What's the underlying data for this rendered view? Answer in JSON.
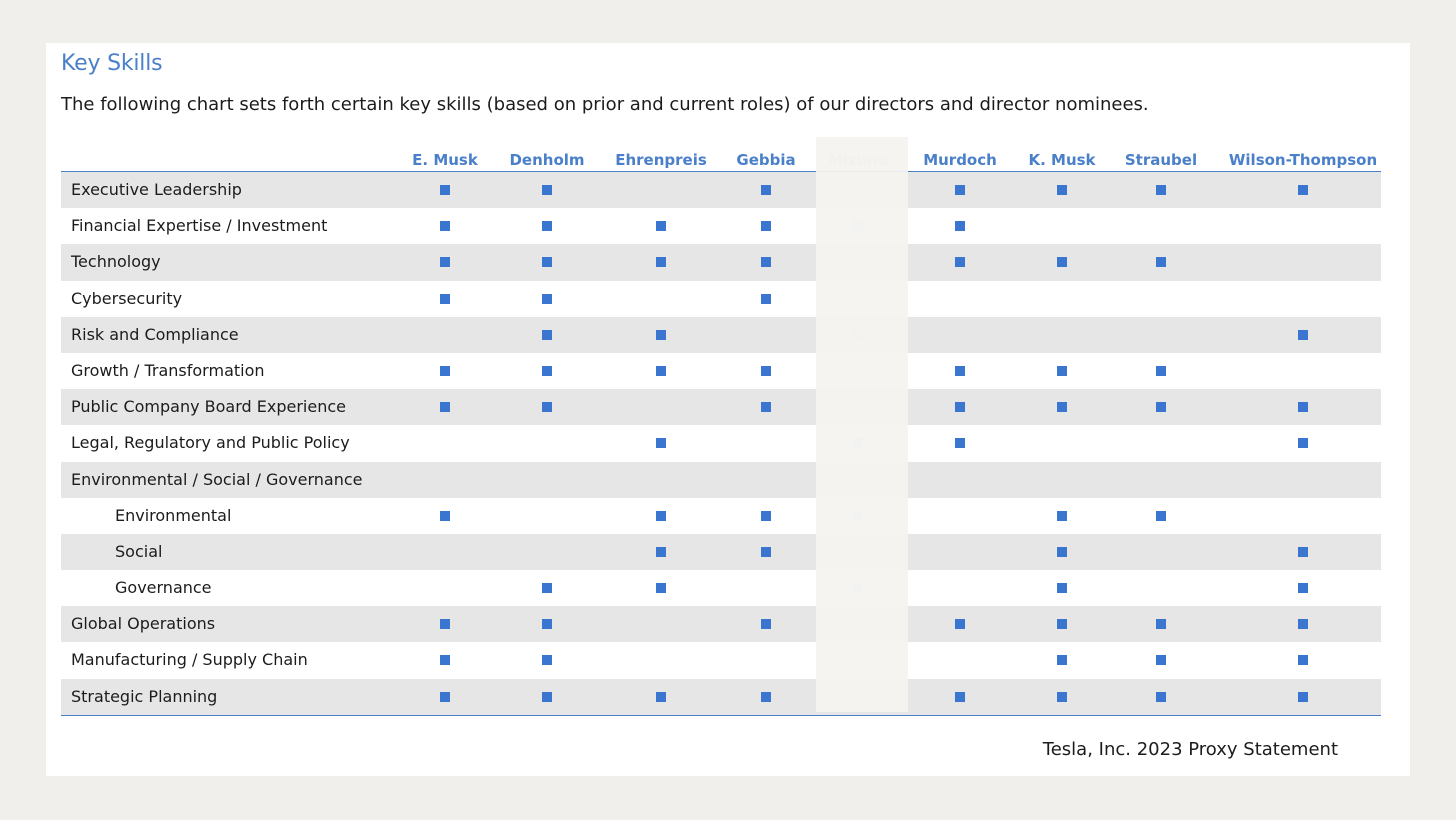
{
  "header": {
    "title": "Key Skills",
    "intro": "The following chart sets forth certain key skills (based on prior and current roles) of our directors and director nominees."
  },
  "directors": [
    {
      "name": "E. Musk",
      "faded": false
    },
    {
      "name": "Denholm",
      "faded": false
    },
    {
      "name": "Ehrenpreis",
      "faded": false
    },
    {
      "name": "Gebbia",
      "faded": false
    },
    {
      "name": "Mizuno",
      "faded": true
    },
    {
      "name": "Murdoch",
      "faded": false
    },
    {
      "name": "K. Musk",
      "faded": false
    },
    {
      "name": "Straubel",
      "faded": false
    },
    {
      "name": "Wilson-Thompson",
      "faded": false
    }
  ],
  "skills": [
    {
      "label": "Executive Leadership",
      "indent": false,
      "marks": [
        1,
        1,
        0,
        1,
        0,
        1,
        1,
        1,
        1
      ]
    },
    {
      "label": "Financial Expertise / Investment",
      "indent": false,
      "marks": [
        1,
        1,
        1,
        1,
        1,
        1,
        0,
        0,
        0
      ]
    },
    {
      "label": "Technology",
      "indent": false,
      "marks": [
        1,
        1,
        1,
        1,
        0,
        1,
        1,
        1,
        0
      ]
    },
    {
      "label": "Cybersecurity",
      "indent": false,
      "marks": [
        1,
        1,
        0,
        1,
        0,
        0,
        0,
        0,
        0
      ]
    },
    {
      "label": "Risk and Compliance",
      "indent": false,
      "marks": [
        0,
        1,
        1,
        0,
        1,
        0,
        0,
        0,
        1
      ]
    },
    {
      "label": "Growth / Transformation",
      "indent": false,
      "marks": [
        1,
        1,
        1,
        1,
        0,
        1,
        1,
        1,
        0
      ]
    },
    {
      "label": "Public Company Board Experience",
      "indent": false,
      "marks": [
        1,
        1,
        0,
        1,
        0,
        1,
        1,
        1,
        1
      ]
    },
    {
      "label": "Legal, Regulatory and Public Policy",
      "indent": false,
      "marks": [
        0,
        0,
        1,
        0,
        1,
        1,
        0,
        0,
        1
      ]
    },
    {
      "label": "Environmental / Social / Governance",
      "indent": false,
      "marks": [
        0,
        0,
        0,
        0,
        0,
        0,
        0,
        0,
        0
      ]
    },
    {
      "label": "Environmental",
      "indent": true,
      "marks": [
        1,
        0,
        1,
        1,
        1,
        0,
        1,
        1,
        0
      ]
    },
    {
      "label": "Social",
      "indent": true,
      "marks": [
        0,
        0,
        1,
        1,
        1,
        0,
        1,
        0,
        1
      ]
    },
    {
      "label": "Governance",
      "indent": true,
      "marks": [
        0,
        1,
        1,
        0,
        1,
        0,
        1,
        0,
        1
      ]
    },
    {
      "label": "Global Operations",
      "indent": false,
      "marks": [
        1,
        1,
        0,
        1,
        1,
        1,
        1,
        1,
        1
      ]
    },
    {
      "label": "Manufacturing / Supply Chain",
      "indent": false,
      "marks": [
        1,
        1,
        0,
        0,
        0,
        0,
        1,
        1,
        1
      ]
    },
    {
      "label": "Strategic Planning",
      "indent": false,
      "marks": [
        1,
        1,
        1,
        1,
        0,
        1,
        1,
        1,
        1
      ]
    }
  ],
  "footer": {
    "text": "Tesla, Inc. 2023 Proxy Statement"
  },
  "colors": {
    "accent": "#4a7fc9",
    "mark": "#3a76cf",
    "row_shade": "#e6e6e6",
    "faded_mark": "#cdd9ea"
  }
}
